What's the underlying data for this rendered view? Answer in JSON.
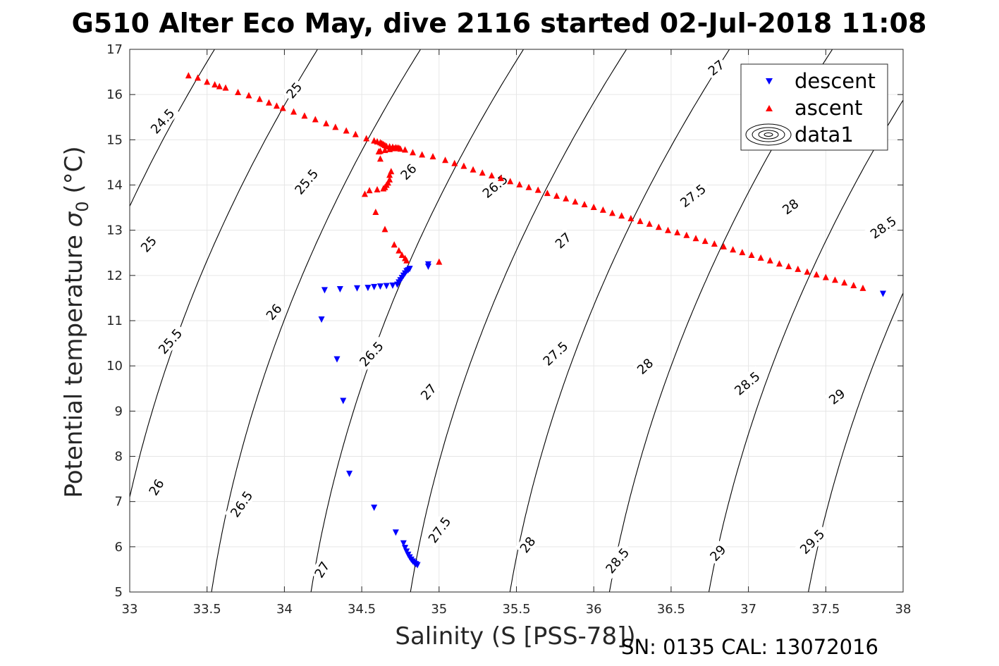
{
  "title": "G510 Alter Eco May, dive 2116 started 02-Jul-2018 11:08",
  "footer": "SN: 0135  CAL: 13072016",
  "chart_data": {
    "type": "scatter",
    "xlabel": "Salinity (S [PSS-78])",
    "ylabel": "Potential temperature σ 0 (°C)",
    "ylabel_main": "Potential temperature ",
    "ylabel_sigma": "σ",
    "ylabel_sub": "0",
    "ylabel_unit": " (°C)",
    "xlim": [
      33,
      38
    ],
    "ylim": [
      5,
      17
    ],
    "xticks": [
      33,
      33.5,
      34,
      34.5,
      35,
      35.5,
      36,
      36.5,
      37,
      37.5,
      38
    ],
    "xtick_labels": [
      "33",
      "33.5",
      "34",
      "34.5",
      "35",
      "35.5",
      "36",
      "36.5",
      "37",
      "37.5",
      "38"
    ],
    "yticks": [
      5,
      6,
      7,
      8,
      9,
      10,
      11,
      12,
      13,
      14,
      15,
      16,
      17
    ],
    "ytick_labels": [
      "5",
      "6",
      "7",
      "8",
      "9",
      "10",
      "11",
      "12",
      "13",
      "14",
      "15",
      "16",
      "17"
    ],
    "grid": true,
    "legend_position": "top-right",
    "legend": [
      {
        "name": "descent",
        "marker": "triangle-down",
        "color": "#0000ff"
      },
      {
        "name": "ascent",
        "marker": "triangle-up",
        "color": "#ff0000"
      },
      {
        "name": "data1",
        "marker": "contour",
        "color": "#000000"
      }
    ],
    "series": [
      {
        "name": "descent",
        "color": "#0000ff",
        "points": [
          [
            37.87,
            11.6
          ],
          [
            34.93,
            12.25
          ],
          [
            34.93,
            12.2
          ],
          [
            34.81,
            12.15
          ],
          [
            34.8,
            12.12
          ],
          [
            34.79,
            12.1
          ],
          [
            34.78,
            12.05
          ],
          [
            34.77,
            12.0
          ],
          [
            34.76,
            11.95
          ],
          [
            34.75,
            11.9
          ],
          [
            34.74,
            11.85
          ],
          [
            34.73,
            11.8
          ],
          [
            34.7,
            11.78
          ],
          [
            34.66,
            11.77
          ],
          [
            34.62,
            11.76
          ],
          [
            34.58,
            11.75
          ],
          [
            34.54,
            11.73
          ],
          [
            34.47,
            11.72
          ],
          [
            34.36,
            11.7
          ],
          [
            34.26,
            11.68
          ],
          [
            34.24,
            11.03
          ],
          [
            34.34,
            10.15
          ],
          [
            34.38,
            9.23
          ],
          [
            34.42,
            7.62
          ],
          [
            34.58,
            6.87
          ],
          [
            34.72,
            6.32
          ],
          [
            34.77,
            6.08
          ],
          [
            34.78,
            5.98
          ],
          [
            34.79,
            5.9
          ],
          [
            34.8,
            5.83
          ],
          [
            34.81,
            5.77
          ],
          [
            34.82,
            5.72
          ],
          [
            34.83,
            5.68
          ],
          [
            34.84,
            5.65
          ],
          [
            34.85,
            5.62
          ],
          [
            34.86,
            5.6
          ]
        ]
      },
      {
        "name": "ascent",
        "color": "#ff0000",
        "points": [
          [
            33.38,
            16.42
          ],
          [
            33.44,
            16.37
          ],
          [
            33.5,
            16.28
          ],
          [
            33.55,
            16.22
          ],
          [
            33.58,
            16.18
          ],
          [
            33.62,
            16.15
          ],
          [
            33.7,
            16.05
          ],
          [
            33.77,
            15.98
          ],
          [
            33.84,
            15.9
          ],
          [
            33.9,
            15.82
          ],
          [
            33.95,
            15.75
          ],
          [
            33.99,
            15.7
          ],
          [
            34.06,
            15.62
          ],
          [
            34.13,
            15.53
          ],
          [
            34.2,
            15.45
          ],
          [
            34.27,
            15.36
          ],
          [
            34.33,
            15.28
          ],
          [
            34.4,
            15.2
          ],
          [
            34.46,
            15.12
          ],
          [
            34.53,
            15.03
          ],
          [
            34.58,
            14.98
          ],
          [
            34.6,
            14.96
          ],
          [
            34.62,
            14.94
          ],
          [
            34.63,
            14.92
          ],
          [
            34.64,
            14.9
          ],
          [
            34.65,
            14.88
          ],
          [
            34.66,
            14.86
          ],
          [
            34.68,
            14.85
          ],
          [
            34.7,
            14.84
          ],
          [
            34.72,
            14.83
          ],
          [
            34.73,
            14.82
          ],
          [
            34.74,
            14.82
          ],
          [
            34.71,
            14.81
          ],
          [
            34.68,
            14.79
          ],
          [
            34.65,
            14.77
          ],
          [
            34.62,
            14.75
          ],
          [
            34.61,
            14.74
          ],
          [
            34.75,
            14.8
          ],
          [
            34.78,
            14.78
          ],
          [
            34.83,
            14.72
          ],
          [
            34.89,
            14.67
          ],
          [
            34.96,
            14.63
          ],
          [
            35.04,
            14.55
          ],
          [
            35.1,
            14.48
          ],
          [
            35.16,
            14.42
          ],
          [
            35.22,
            14.34
          ],
          [
            35.28,
            14.27
          ],
          [
            35.34,
            14.21
          ],
          [
            35.4,
            14.15
          ],
          [
            35.46,
            14.08
          ],
          [
            35.52,
            14.01
          ],
          [
            35.58,
            13.95
          ],
          [
            35.64,
            13.89
          ],
          [
            35.7,
            13.82
          ],
          [
            35.76,
            13.76
          ],
          [
            35.82,
            13.7
          ],
          [
            35.88,
            13.63
          ],
          [
            35.94,
            13.57
          ],
          [
            36.0,
            13.51
          ],
          [
            36.06,
            13.45
          ],
          [
            36.12,
            13.38
          ],
          [
            36.18,
            13.32
          ],
          [
            36.24,
            13.26
          ],
          [
            36.3,
            13.2
          ],
          [
            36.36,
            13.14
          ],
          [
            36.42,
            13.07
          ],
          [
            36.48,
            13.0
          ],
          [
            36.54,
            12.95
          ],
          [
            36.6,
            12.89
          ],
          [
            36.66,
            12.82
          ],
          [
            36.72,
            12.76
          ],
          [
            36.78,
            12.7
          ],
          [
            36.84,
            12.64
          ],
          [
            36.9,
            12.57
          ],
          [
            36.96,
            12.51
          ],
          [
            37.02,
            12.45
          ],
          [
            37.08,
            12.39
          ],
          [
            37.14,
            12.33
          ],
          [
            37.2,
            12.26
          ],
          [
            37.26,
            12.2
          ],
          [
            37.32,
            12.14
          ],
          [
            37.38,
            12.08
          ],
          [
            37.44,
            12.02
          ],
          [
            37.5,
            11.96
          ],
          [
            37.56,
            11.9
          ],
          [
            37.62,
            11.84
          ],
          [
            37.68,
            11.78
          ],
          [
            37.74,
            11.72
          ],
          [
            34.62,
            14.58
          ],
          [
            34.69,
            14.3
          ],
          [
            34.68,
            14.22
          ],
          [
            34.68,
            14.12
          ],
          [
            34.67,
            14.05
          ],
          [
            34.66,
            14.0
          ],
          [
            34.65,
            13.95
          ],
          [
            34.64,
            13.92
          ],
          [
            34.6,
            13.9
          ],
          [
            34.55,
            13.88
          ],
          [
            34.52,
            13.8
          ],
          [
            34.59,
            13.4
          ],
          [
            34.65,
            13.02
          ],
          [
            34.71,
            12.68
          ],
          [
            34.74,
            12.55
          ],
          [
            34.76,
            12.45
          ],
          [
            34.78,
            12.38
          ],
          [
            34.79,
            12.33
          ],
          [
            35.0,
            12.3
          ]
        ]
      }
    ],
    "contours": [
      {
        "level": 24.5,
        "label": "24.5",
        "lx": 33.21,
        "ly": 15.42,
        "ang": -48
      },
      {
        "level": 25,
        "label": "25",
        "lx": 34.06,
        "ly": 16.1,
        "ang": -50
      },
      {
        "level": 25,
        "label": "25",
        "lx": 33.12,
        "ly": 12.7,
        "ang": -48
      },
      {
        "level": 25.5,
        "label": "25.5",
        "lx": 34.14,
        "ly": 14.08,
        "ang": -50
      },
      {
        "level": 25.5,
        "label": "25.5",
        "lx": 33.26,
        "ly": 10.55,
        "ang": -49
      },
      {
        "level": 26,
        "label": "26",
        "lx": 34.8,
        "ly": 14.3,
        "ang": -45
      },
      {
        "level": 26,
        "label": "26",
        "lx": 33.93,
        "ly": 11.2,
        "ang": -50
      },
      {
        "level": 26,
        "label": "26",
        "lx": 33.17,
        "ly": 7.32,
        "ang": -58
      },
      {
        "level": 26.5,
        "label": "26.5",
        "lx": 35.36,
        "ly": 13.98,
        "ang": -40
      },
      {
        "level": 26.5,
        "label": "26.5",
        "lx": 34.56,
        "ly": 10.27,
        "ang": -48
      },
      {
        "level": 26.5,
        "label": "26.5",
        "lx": 33.72,
        "ly": 6.95,
        "ang": -55
      },
      {
        "level": 27,
        "label": "27",
        "lx": 36.79,
        "ly": 16.6,
        "ang": -38
      },
      {
        "level": 27,
        "label": "27",
        "lx": 35.8,
        "ly": 12.78,
        "ang": -42
      },
      {
        "level": 27,
        "label": "27",
        "lx": 34.93,
        "ly": 9.43,
        "ang": -49
      },
      {
        "level": 27,
        "label": "27",
        "lx": 34.24,
        "ly": 5.5,
        "ang": -58
      },
      {
        "level": 27.5,
        "label": "27.5",
        "lx": 36.64,
        "ly": 13.77,
        "ang": -38
      },
      {
        "level": 27.5,
        "label": "27.5",
        "lx": 35.75,
        "ly": 10.28,
        "ang": -43
      },
      {
        "level": 27.5,
        "label": "27.5",
        "lx": 35.0,
        "ly": 6.38,
        "ang": -54
      },
      {
        "level": 28,
        "label": "28",
        "lx": 37.27,
        "ly": 13.53,
        "ang": -36
      },
      {
        "level": 28,
        "label": "28",
        "lx": 36.33,
        "ly": 10.0,
        "ang": -42
      },
      {
        "level": 28,
        "label": "28",
        "lx": 35.57,
        "ly": 6.05,
        "ang": -52
      },
      {
        "level": 28.5,
        "label": "28.5",
        "lx": 37.87,
        "ly": 13.07,
        "ang": -35
      },
      {
        "level": 28.5,
        "label": "28.5",
        "lx": 36.99,
        "ly": 9.62,
        "ang": -40
      },
      {
        "level": 28.5,
        "label": "28.5",
        "lx": 36.15,
        "ly": 5.7,
        "ang": -50
      },
      {
        "level": 29,
        "label": "29",
        "lx": 37.57,
        "ly": 9.33,
        "ang": -38
      },
      {
        "level": 29,
        "label": "29",
        "lx": 36.8,
        "ly": 5.87,
        "ang": -47
      },
      {
        "level": 29.5,
        "label": "29.5",
        "lx": 37.41,
        "ly": 6.12,
        "ang": -45
      }
    ]
  }
}
